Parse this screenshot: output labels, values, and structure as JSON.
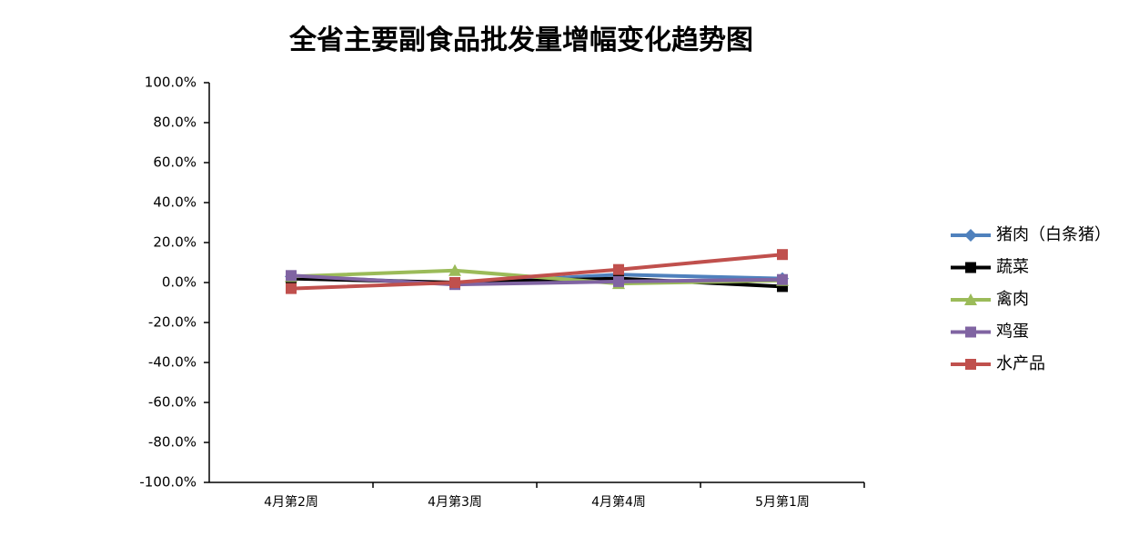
{
  "chart_data": {
    "type": "line",
    "title": "全省主要副食品批发量增幅变化趋势图",
    "categories": [
      "4月第2周",
      "4月第3周",
      "4月第4周",
      "5月第1周"
    ],
    "ylim": [
      -100,
      100
    ],
    "yticks": [
      {
        "value": -100,
        "label": "-100.0%"
      },
      {
        "value": -80,
        "label": "-80.0%"
      },
      {
        "value": -60,
        "label": "-60.0%"
      },
      {
        "value": -40,
        "label": "-40.0%"
      },
      {
        "value": -20,
        "label": "-20.0%"
      },
      {
        "value": 0,
        "label": "0.0%"
      },
      {
        "value": 20,
        "label": "20.0%"
      },
      {
        "value": 40,
        "label": "40.0%"
      },
      {
        "value": 60,
        "label": "60.0%"
      },
      {
        "value": 80,
        "label": "80.0%"
      },
      {
        "value": 100,
        "label": "100.0%"
      }
    ],
    "grid": false,
    "legend": "right",
    "series": [
      {
        "name": "猪肉（白条猪）",
        "color": "#4f81bd",
        "marker": "diamond",
        "values": [
          3,
          -0.5,
          4,
          2
        ]
      },
      {
        "name": "蔬菜",
        "color": "#000000",
        "marker": "square",
        "values": [
          2,
          0,
          2,
          -2
        ]
      },
      {
        "name": "禽肉",
        "color": "#9bbb59",
        "marker": "triangle",
        "values": [
          3,
          6,
          -0.5,
          1
        ]
      },
      {
        "name": "鸡蛋",
        "color": "#8064a2",
        "marker": "square",
        "values": [
          3.5,
          -1,
          0.5,
          1.5
        ]
      },
      {
        "name": "水产品",
        "color": "#c0504d",
        "marker": "square",
        "values": [
          -3,
          0,
          6.5,
          14
        ]
      }
    ]
  }
}
